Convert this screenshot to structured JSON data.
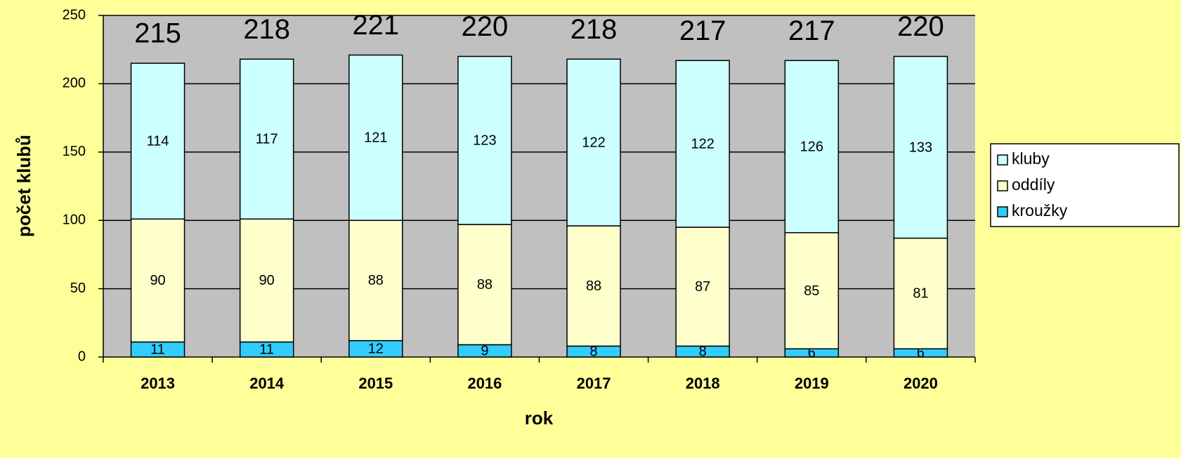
{
  "chart_data": {
    "type": "stacked_bar",
    "x_label": "rok",
    "y_label": "počet klubů",
    "categories": [
      "2013",
      "2014",
      "2015",
      "2016",
      "2017",
      "2018",
      "2019",
      "2020"
    ],
    "series": [
      {
        "name": "kroužky",
        "color": "#33CCFF",
        "values": [
          11,
          11,
          12,
          9,
          8,
          8,
          6,
          6
        ]
      },
      {
        "name": "oddíly",
        "color": "#FFFFCC",
        "values": [
          90,
          90,
          88,
          88,
          88,
          87,
          85,
          81
        ]
      },
      {
        "name": "kluby",
        "color": "#CCFFFF",
        "values": [
          114,
          117,
          121,
          123,
          122,
          122,
          126,
          133
        ]
      }
    ],
    "totals": [
      215,
      218,
      221,
      220,
      218,
      217,
      217,
      220
    ],
    "ylim": [
      0,
      250
    ],
    "yticks": [
      0,
      50,
      100,
      150,
      200,
      250
    ],
    "grid": true,
    "legend": "right"
  }
}
